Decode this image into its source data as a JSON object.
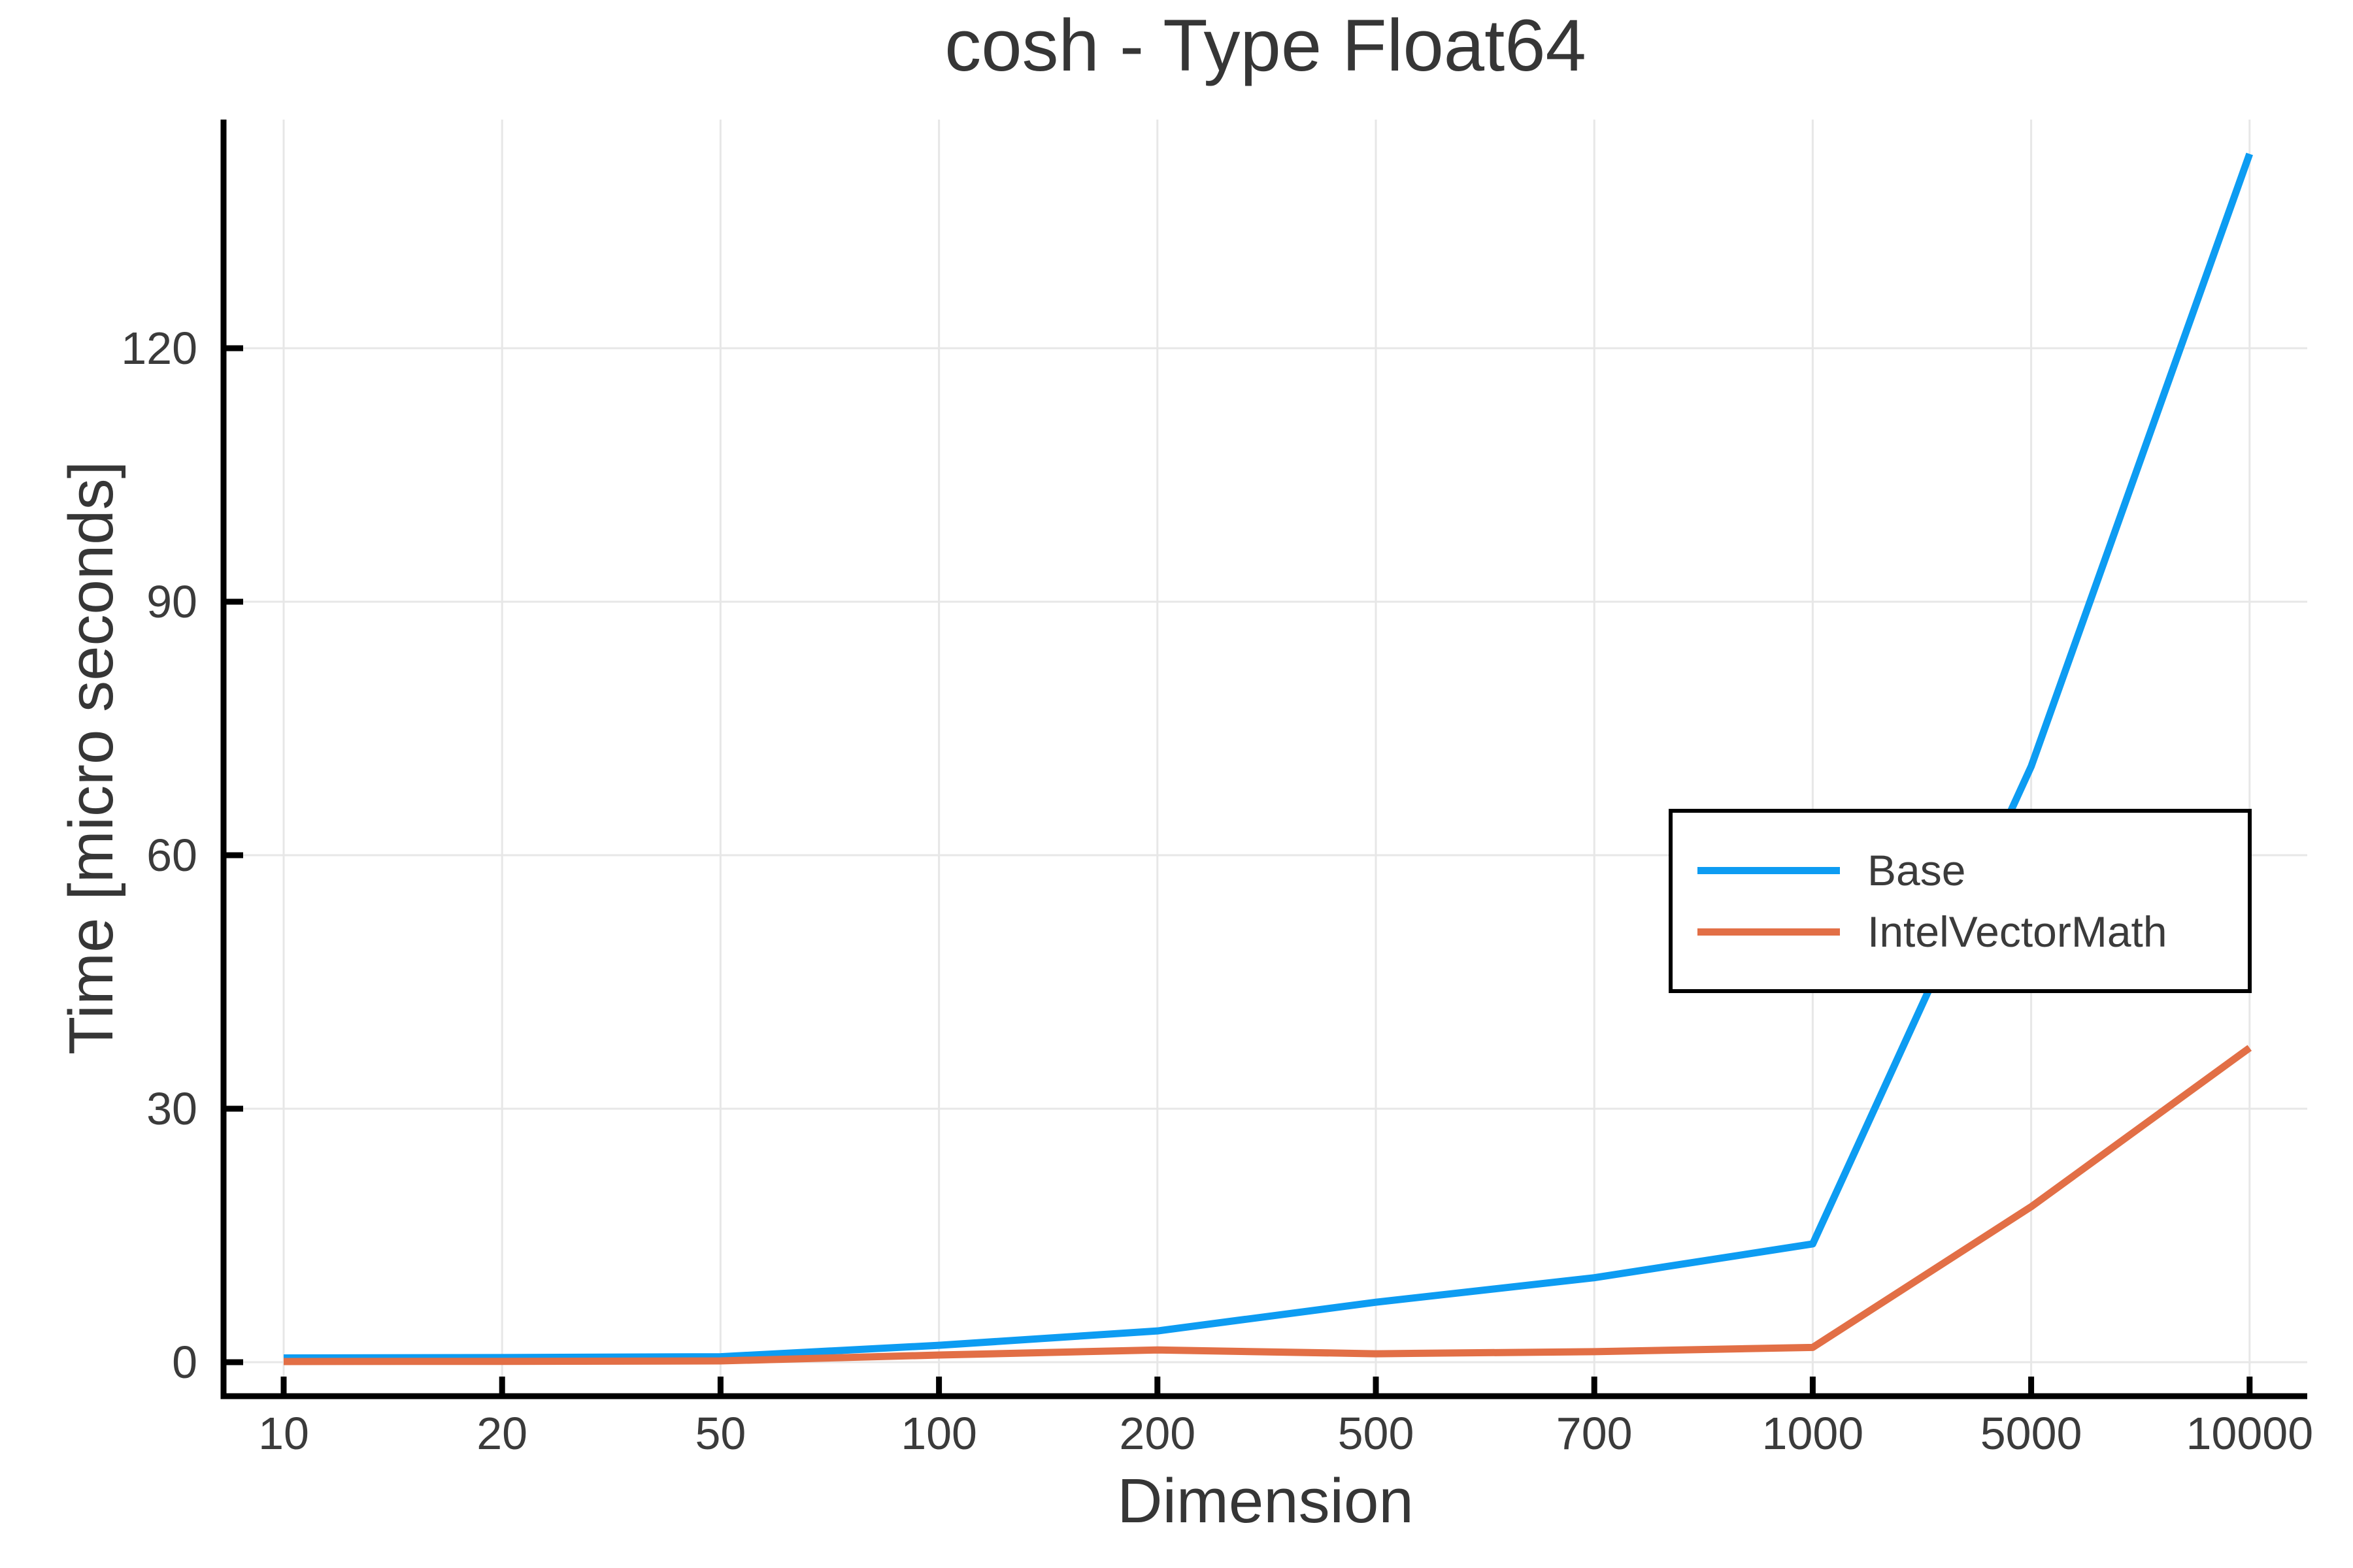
{
  "page": {
    "background": "#ffffff"
  },
  "chart_data": {
    "type": "line",
    "title": "cosh - Type Float64",
    "xlabel": "Dimension",
    "ylabel": "Time [micro seconds]",
    "x_scale": "categorical",
    "categories": [
      "10",
      "20",
      "50",
      "100",
      "200",
      "500",
      "700",
      "1000",
      "5000",
      "10000"
    ],
    "y_ticks": [
      0,
      30,
      60,
      90,
      120
    ],
    "ylim": [
      -4,
      147
    ],
    "grid": true,
    "legend_position": "middle-right",
    "axis_color": "#000000",
    "grid_color": "#e7e7e7",
    "text_color": "#3b3b3b",
    "series": [
      {
        "name": "Base",
        "color": "#0d9cf2",
        "values": [
          0.5,
          0.55,
          0.65,
          2.0,
          3.7,
          7.1,
          10.0,
          14.0,
          70.5,
          143.0
        ]
      },
      {
        "name": "IntelVectorMath",
        "color": "#e26f46",
        "values": [
          0.08,
          0.1,
          0.15,
          0.85,
          1.45,
          1.0,
          1.25,
          1.75,
          18.4,
          37.2
        ]
      }
    ]
  }
}
